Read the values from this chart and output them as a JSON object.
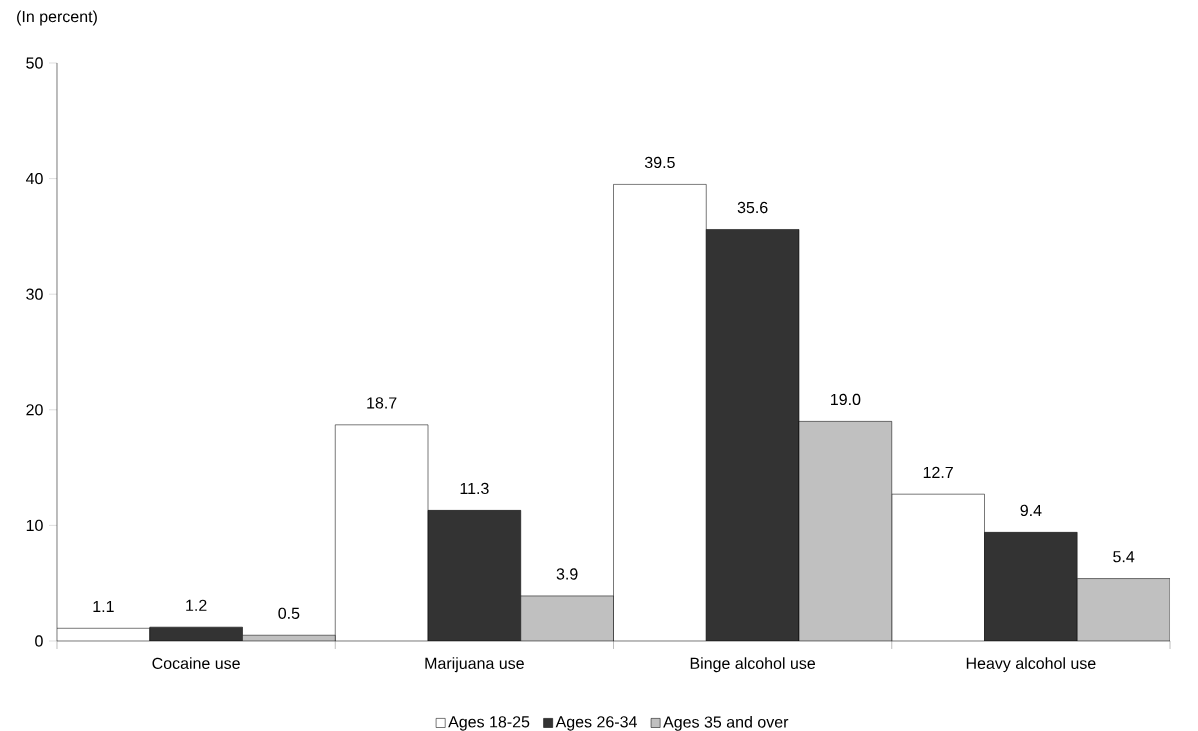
{
  "chart_data": {
    "type": "bar",
    "ylabel": "(In percent)",
    "categories": [
      "Cocaine use",
      "Marijuana use",
      "Binge alcohol use",
      "Heavy alcohol use"
    ],
    "series": [
      {
        "name": "Ages 18-25",
        "color": "#ffffff",
        "values": [
          1.1,
          18.7,
          39.5,
          12.7
        ],
        "value_labels": [
          "1.1",
          "18.7",
          "39.5",
          "12.7"
        ]
      },
      {
        "name": "Ages 26-34",
        "color": "#333333",
        "values": [
          1.2,
          11.3,
          35.6,
          9.4
        ],
        "value_labels": [
          "1.2",
          "11.3",
          "35.6",
          "9.4"
        ]
      },
      {
        "name": "Ages 35 and over",
        "color": "#c0c0c0",
        "values": [
          0.5,
          3.9,
          19.0,
          5.4
        ],
        "value_labels": [
          "0.5",
          "3.9",
          "19.0",
          "5.4"
        ]
      }
    ],
    "ylim": [
      0,
      50
    ],
    "yticks": [
      0,
      10,
      20,
      30,
      40,
      50
    ],
    "grid": false,
    "legend": "bottom"
  }
}
